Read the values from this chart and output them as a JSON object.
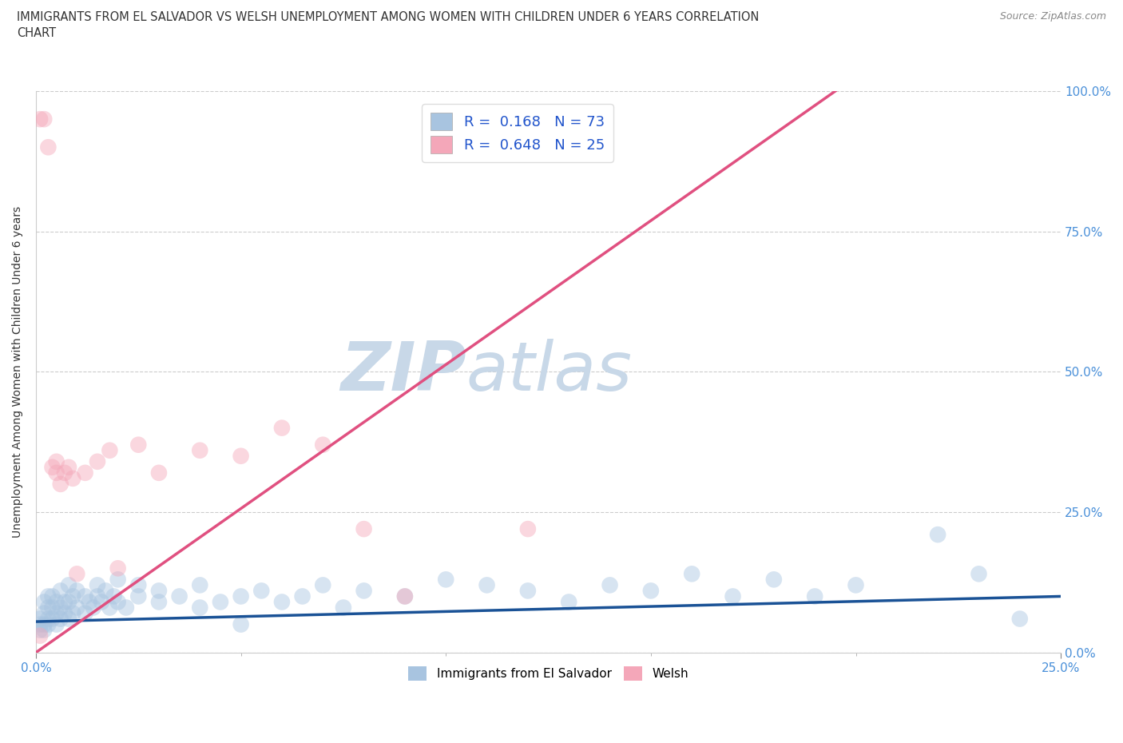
{
  "title": "IMMIGRANTS FROM EL SALVADOR VS WELSH UNEMPLOYMENT AMONG WOMEN WITH CHILDREN UNDER 6 YEARS CORRELATION\nCHART",
  "source": "Source: ZipAtlas.com",
  "ylabel": "Unemployment Among Women with Children Under 6 years",
  "xmin": 0.0,
  "xmax": 0.25,
  "ymin": 0.0,
  "ymax": 1.0,
  "legend_entries": [
    {
      "label": "Immigrants from El Salvador",
      "R": 0.168,
      "N": 73,
      "color": "#a8c4e0"
    },
    {
      "label": "Welsh",
      "R": 0.648,
      "N": 25,
      "color": "#f4a7b9"
    }
  ],
  "blue_scatter_x": [
    0.001,
    0.001,
    0.001,
    0.002,
    0.002,
    0.002,
    0.002,
    0.003,
    0.003,
    0.003,
    0.003,
    0.004,
    0.004,
    0.004,
    0.005,
    0.005,
    0.005,
    0.006,
    0.006,
    0.006,
    0.007,
    0.007,
    0.008,
    0.008,
    0.008,
    0.009,
    0.009,
    0.01,
    0.01,
    0.012,
    0.012,
    0.013,
    0.014,
    0.015,
    0.015,
    0.016,
    0.017,
    0.018,
    0.019,
    0.02,
    0.02,
    0.022,
    0.025,
    0.025,
    0.03,
    0.03,
    0.035,
    0.04,
    0.04,
    0.045,
    0.05,
    0.05,
    0.055,
    0.06,
    0.065,
    0.07,
    0.075,
    0.08,
    0.09,
    0.1,
    0.11,
    0.12,
    0.13,
    0.14,
    0.15,
    0.16,
    0.17,
    0.18,
    0.19,
    0.2,
    0.22,
    0.23,
    0.24
  ],
  "blue_scatter_y": [
    0.04,
    0.05,
    0.06,
    0.04,
    0.05,
    0.07,
    0.09,
    0.05,
    0.06,
    0.08,
    0.1,
    0.06,
    0.08,
    0.1,
    0.05,
    0.07,
    0.09,
    0.06,
    0.08,
    0.11,
    0.07,
    0.09,
    0.06,
    0.09,
    0.12,
    0.07,
    0.1,
    0.08,
    0.11,
    0.07,
    0.1,
    0.09,
    0.08,
    0.1,
    0.12,
    0.09,
    0.11,
    0.08,
    0.1,
    0.09,
    0.13,
    0.08,
    0.1,
    0.12,
    0.09,
    0.11,
    0.1,
    0.08,
    0.12,
    0.09,
    0.1,
    0.05,
    0.11,
    0.09,
    0.1,
    0.12,
    0.08,
    0.11,
    0.1,
    0.13,
    0.12,
    0.11,
    0.09,
    0.12,
    0.11,
    0.14,
    0.1,
    0.13,
    0.1,
    0.12,
    0.21,
    0.14,
    0.06
  ],
  "pink_scatter_x": [
    0.001,
    0.001,
    0.002,
    0.003,
    0.004,
    0.005,
    0.005,
    0.006,
    0.007,
    0.008,
    0.009,
    0.01,
    0.012,
    0.015,
    0.018,
    0.02,
    0.025,
    0.03,
    0.04,
    0.05,
    0.06,
    0.07,
    0.08,
    0.09,
    0.12
  ],
  "pink_scatter_y": [
    0.03,
    0.95,
    0.95,
    0.9,
    0.33,
    0.34,
    0.32,
    0.3,
    0.32,
    0.33,
    0.31,
    0.14,
    0.32,
    0.34,
    0.36,
    0.15,
    0.37,
    0.32,
    0.36,
    0.35,
    0.4,
    0.37,
    0.22,
    0.1,
    0.22
  ],
  "blue_line_x": [
    0.0,
    0.25
  ],
  "blue_line_y": [
    0.055,
    0.1
  ],
  "pink_line_x": [
    0.0,
    0.195
  ],
  "pink_line_y": [
    0.0,
    1.0
  ],
  "scatter_size": 220,
  "scatter_alpha": 0.45,
  "line_width": 2.5,
  "blue_line_color": "#1a5296",
  "pink_line_color": "#e05080",
  "grid_color": "#cccccc",
  "watermark_zip": "ZIP",
  "watermark_atlas": "atlas",
  "watermark_color_zip": "#c8d8e8",
  "watermark_color_atlas": "#c8d8e8",
  "background_color": "#ffffff"
}
